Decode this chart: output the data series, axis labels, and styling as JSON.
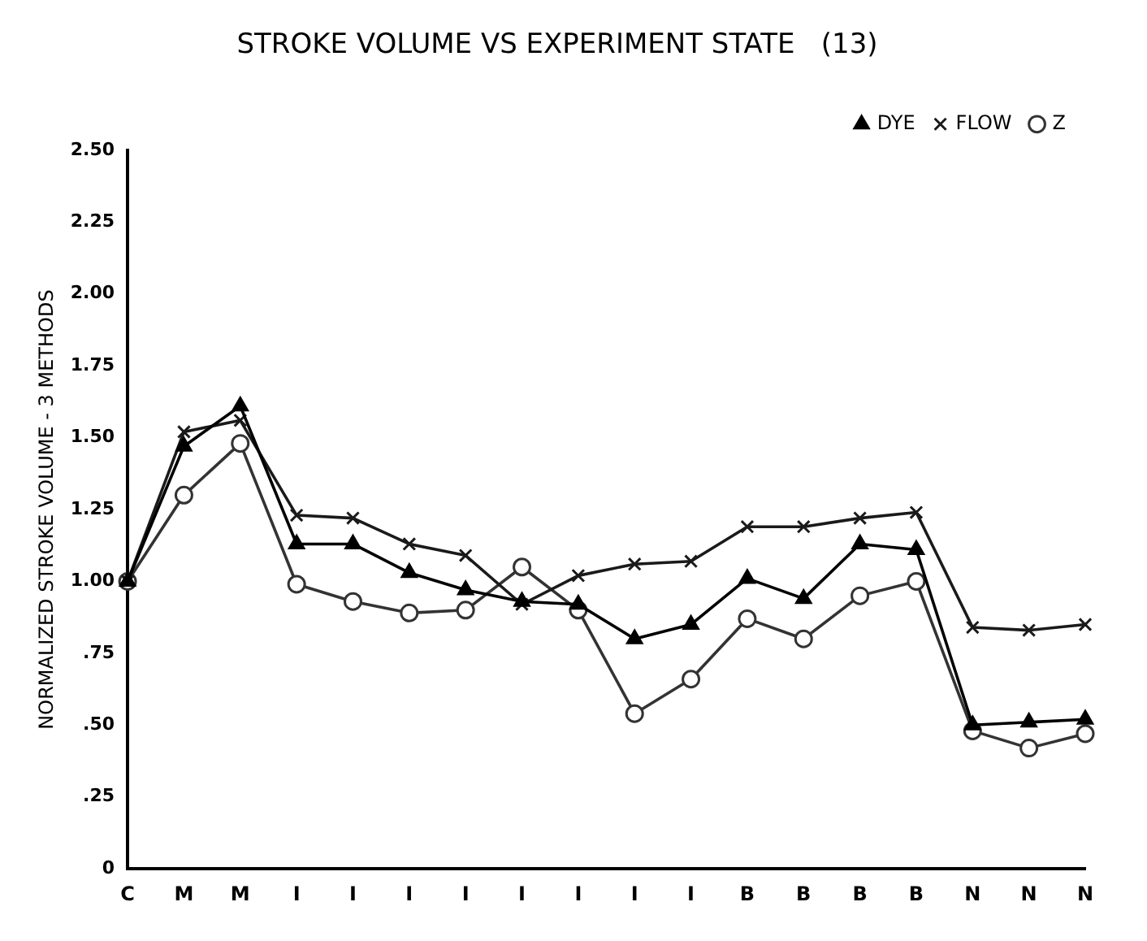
{
  "chart_data": {
    "type": "line",
    "title": "STROKE VOLUME VS EXPERIMENT STATE   (13)",
    "ylabel": "NORMALIZED STROKE VOLUME - 3 METHODS",
    "categories": [
      "C",
      "M",
      "M",
      "I",
      "I",
      "I",
      "I",
      "I",
      "I",
      "I",
      "I",
      "B",
      "B",
      "B",
      "B",
      "N",
      "N",
      "N"
    ],
    "series": [
      {
        "name": "DYE",
        "color": "#000000",
        "marker": "triangle",
        "values": [
          1.0,
          1.47,
          1.61,
          1.13,
          1.13,
          1.03,
          0.97,
          0.93,
          0.92,
          0.8,
          0.85,
          1.01,
          0.94,
          1.13,
          1.11,
          0.5,
          0.51,
          0.52
        ]
      },
      {
        "name": "FLOW",
        "color": "#1a1a1a",
        "marker": "cross",
        "values": [
          1.0,
          1.52,
          1.56,
          1.23,
          1.22,
          1.13,
          1.09,
          0.92,
          1.02,
          1.06,
          1.07,
          1.19,
          1.19,
          1.22,
          1.24,
          0.84,
          0.83,
          0.85
        ]
      },
      {
        "name": "Z",
        "color": "#333333",
        "marker": "circle",
        "values": [
          1.0,
          1.3,
          1.48,
          0.99,
          0.93,
          0.89,
          0.9,
          1.05,
          0.9,
          0.54,
          0.66,
          0.87,
          0.8,
          0.95,
          1.0,
          0.48,
          0.42,
          0.47
        ]
      }
    ],
    "ylim": [
      0,
      2.5
    ],
    "yticks": [
      0,
      {
        "value": 0.25,
        "label": ".25"
      },
      {
        "value": 0.5,
        "label": ".50"
      },
      {
        "value": 0.75,
        "label": ".75"
      },
      {
        "value": 1,
        "label": "1.00"
      },
      {
        "value": 1.25,
        "label": "1.25"
      },
      {
        "value": 1.5,
        "label": "1.50"
      },
      {
        "value": 1.75,
        "label": "1.75"
      },
      {
        "value": 2,
        "label": "2.00"
      },
      {
        "value": 2.25,
        "label": "2.25"
      },
      {
        "value": 2.5,
        "label": "2.50"
      }
    ],
    "grid": false,
    "legend": "top right",
    "line_style": "solid"
  }
}
